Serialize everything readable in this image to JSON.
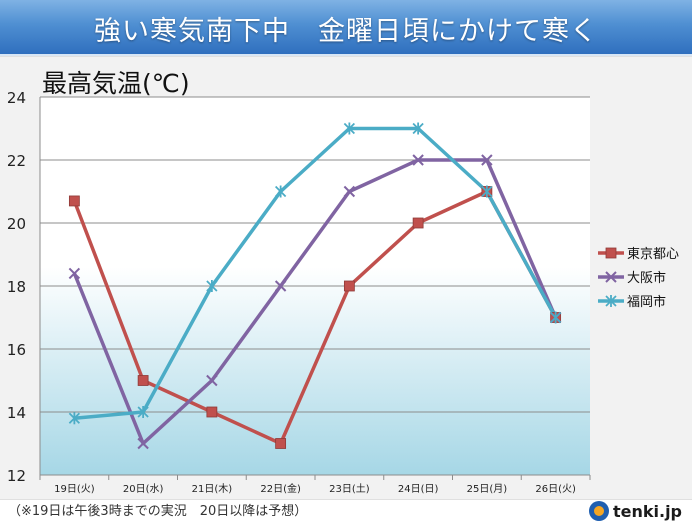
{
  "header": {
    "title": "強い寒気南下中　金曜日頃にかけて寒く"
  },
  "footnote": "（※19日は午後3時までの実況　20日以降は予想）",
  "logo": {
    "text": "tenki.jp",
    "icon": "tenki-logo-icon"
  },
  "chart_data": {
    "type": "line",
    "title": "最高気温(℃)",
    "categories": [
      "19日(火)",
      "20日(水)",
      "21日(木)",
      "22日(金)",
      "23日(土)",
      "24日(日)",
      "25日(月)",
      "26日(火)"
    ],
    "ylim": [
      12,
      24
    ],
    "yticks": [
      12,
      14,
      16,
      18,
      20,
      22,
      24
    ],
    "grid": true,
    "legend_position": "right",
    "series": [
      {
        "name": "東京都心",
        "color": "#c0504d",
        "marker": "square",
        "values": [
          20.7,
          15,
          14,
          13,
          18,
          20,
          21,
          17
        ]
      },
      {
        "name": "大阪市",
        "color": "#8064a2",
        "marker": "x",
        "values": [
          18.4,
          13,
          15,
          18,
          21,
          22,
          22,
          17
        ]
      },
      {
        "name": "福岡市",
        "color": "#4bacc6",
        "marker": "star",
        "values": [
          13.8,
          14,
          18,
          21,
          23,
          23,
          21,
          17
        ]
      }
    ]
  }
}
